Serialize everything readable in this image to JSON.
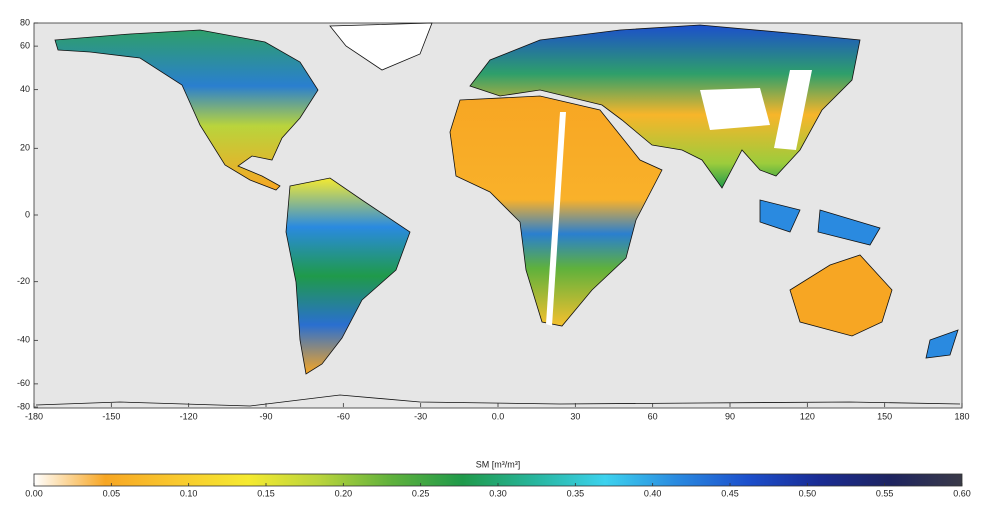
{
  "chart_data": {
    "type": "map",
    "xlim": [
      -180,
      180
    ],
    "ylim": [
      -80,
      80
    ],
    "xticks": [
      -180,
      -150,
      -120,
      -90,
      -60,
      -30,
      {
        "value": 0,
        "label": "0.0"
      },
      30,
      60,
      90,
      120,
      150,
      180
    ],
    "yticks": [
      -80,
      -60,
      -40,
      -20,
      0,
      20,
      40,
      60,
      80
    ],
    "colorbar": {
      "label": "SM [m³/m³]",
      "lim": [
        0,
        0.6
      ],
      "ticks": [
        {
          "value": 0,
          "label": "0.00"
        },
        {
          "value": 0.05,
          "label": "0.05"
        },
        {
          "value": 0.1,
          "label": "0.10"
        },
        {
          "value": 0.15,
          "label": "0.15"
        },
        {
          "value": 0.2,
          "label": "0.20"
        },
        {
          "value": 0.25,
          "label": "0.25"
        },
        {
          "value": 0.3,
          "label": "0.30"
        },
        {
          "value": 0.35,
          "label": "0.35"
        },
        {
          "value": 0.4,
          "label": "0.40"
        },
        {
          "value": 0.45,
          "label": "0.45"
        },
        {
          "value": 0.5,
          "label": "0.50"
        },
        {
          "value": 0.55,
          "label": "0.55"
        },
        {
          "value": 0.6,
          "label": "0.60"
        }
      ],
      "colormap": [
        "#ffffff",
        "#f7a623",
        "#f9c92e",
        "#f5ea30",
        "#b9d43c",
        "#5fb13c",
        "#1f9a4a",
        "#27b59c",
        "#3cd2ee",
        "#2a8ae0",
        "#1c4fcc",
        "#1a2c94",
        "#1e2460",
        "#3a3a48"
      ]
    }
  }
}
